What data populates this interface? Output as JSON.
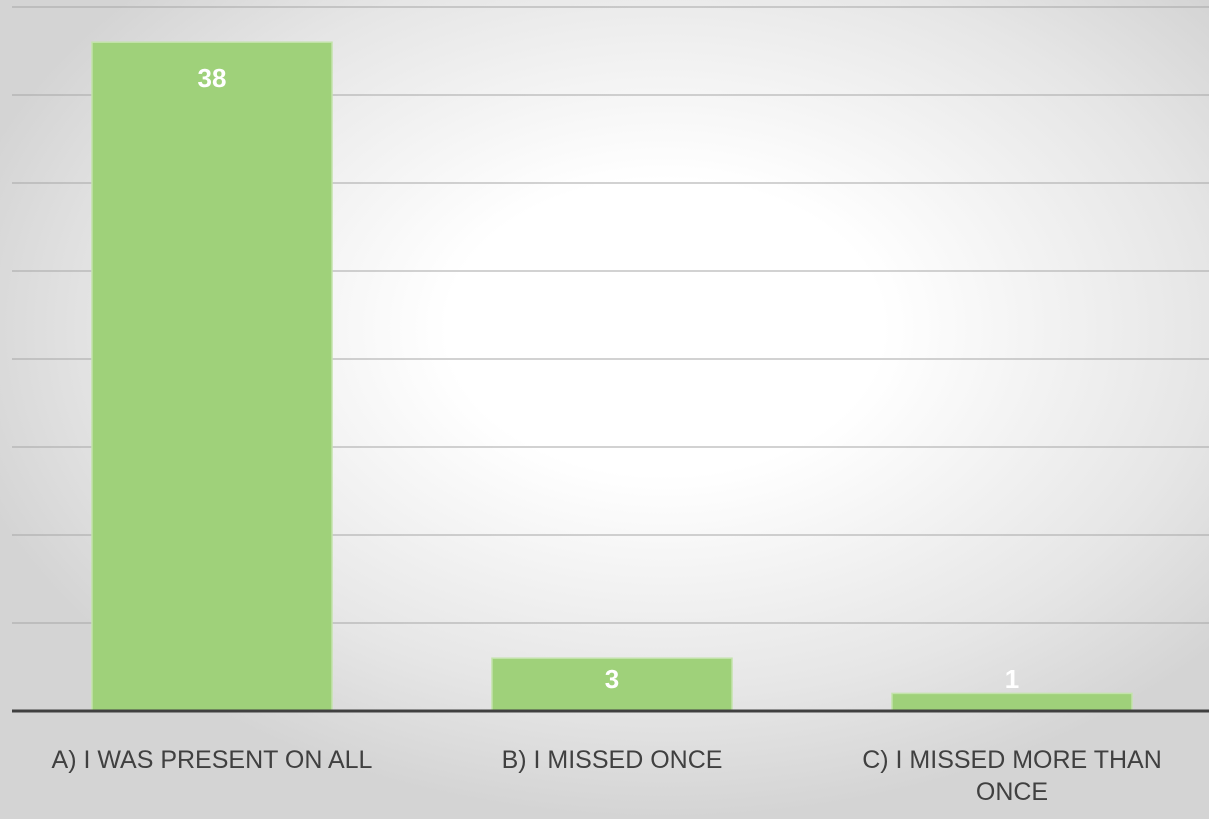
{
  "chart_data": {
    "type": "bar",
    "categories": [
      "A) I WAS PRESENT ON ALL",
      "B) I MISSED ONCE",
      "C) I MISSED MORE THAN ONCE"
    ],
    "values": [
      38,
      3,
      1
    ],
    "color": "#9fd17a",
    "ylim": [
      0,
      40
    ],
    "yticks": [
      0,
      5,
      10,
      15,
      20,
      25,
      30,
      35,
      40
    ],
    "grid": true
  }
}
